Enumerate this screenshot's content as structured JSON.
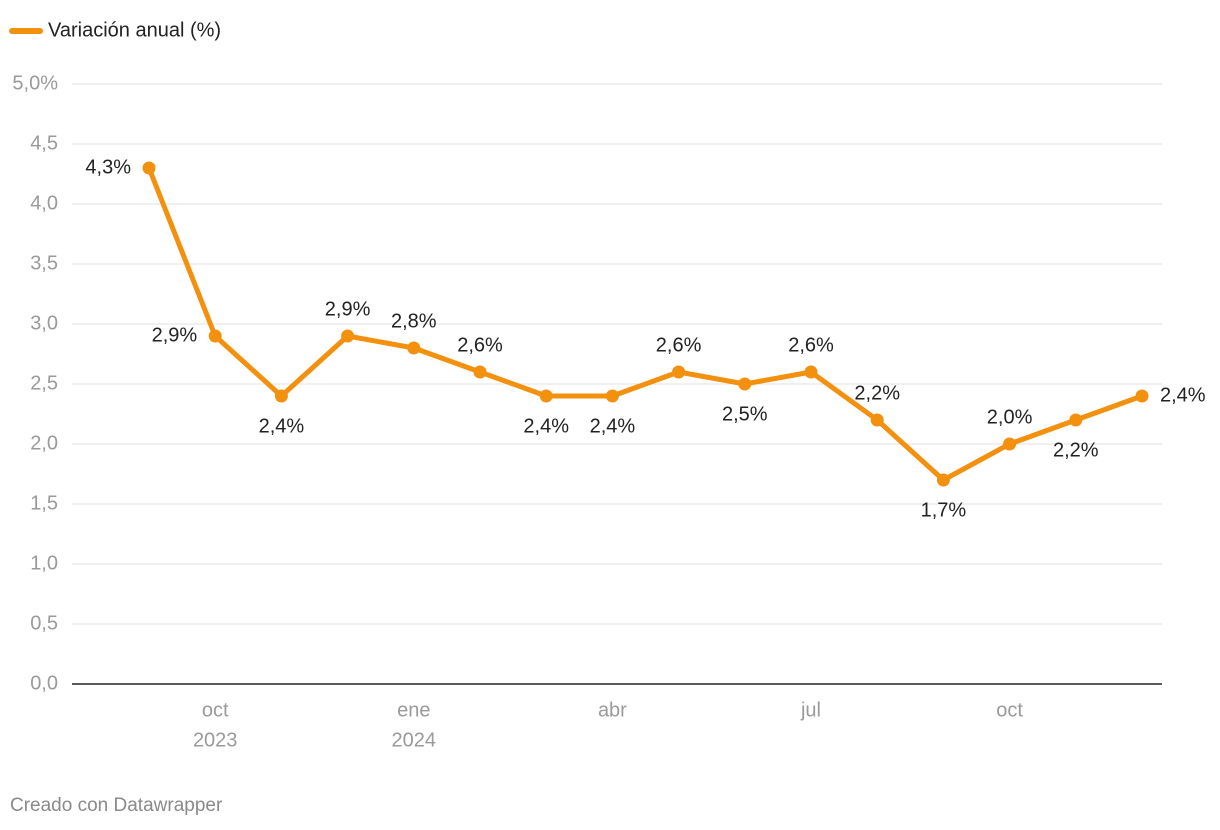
{
  "chart_data": {
    "type": "line",
    "legend": "Variación anual (%)",
    "footer": "Creado con Datawrapper",
    "x": [
      "2023-09",
      "2023-10",
      "2023-11",
      "2023-12",
      "2024-01",
      "2024-02",
      "2024-03",
      "2024-04",
      "2024-05",
      "2024-06",
      "2024-07",
      "2024-08",
      "2024-09",
      "2024-10",
      "2024-11",
      "2024-12"
    ],
    "xticks": [
      {
        "value": "2023-10",
        "label": [
          "oct",
          "2023"
        ]
      },
      {
        "value": "2024-01",
        "label": [
          "ene",
          "2024"
        ]
      },
      {
        "value": "2024-04",
        "label": [
          "abr"
        ]
      },
      {
        "value": "2024-07",
        "label": [
          "jul"
        ]
      },
      {
        "value": "2024-10",
        "label": [
          "oct"
        ]
      }
    ],
    "series": [
      {
        "name": "Variación anual (%)",
        "color": "#f3900e",
        "values": [
          4.3,
          2.9,
          2.4,
          2.9,
          2.8,
          2.6,
          2.4,
          2.4,
          2.6,
          2.5,
          2.6,
          2.2,
          1.7,
          2.0,
          2.2,
          2.4
        ],
        "value_labels": [
          "4,3%",
          "2,9%",
          "2,4%",
          "2,9%",
          "2,8%",
          "2,6%",
          "2,4%",
          "2,4%",
          "2,6%",
          "2,5%",
          "2,6%",
          "2,2%",
          "1,7%",
          "2,0%",
          "2,2%",
          "2,4%"
        ]
      }
    ],
    "ylim": [
      0,
      5
    ],
    "yticks": [
      {
        "value": 0,
        "label": "0,0"
      },
      {
        "value": 0.5,
        "label": "0,5"
      },
      {
        "value": 1,
        "label": "1,0"
      },
      {
        "value": 1.5,
        "label": "1,5"
      },
      {
        "value": 2,
        "label": "2,0"
      },
      {
        "value": 2.5,
        "label": "2,5"
      },
      {
        "value": 3,
        "label": "3,0"
      },
      {
        "value": 3.5,
        "label": "3,5"
      },
      {
        "value": 4,
        "label": "4,0"
      },
      {
        "value": 4.5,
        "label": "4,5"
      },
      {
        "value": 5,
        "label": "5,0%"
      }
    ],
    "grid": true
  }
}
